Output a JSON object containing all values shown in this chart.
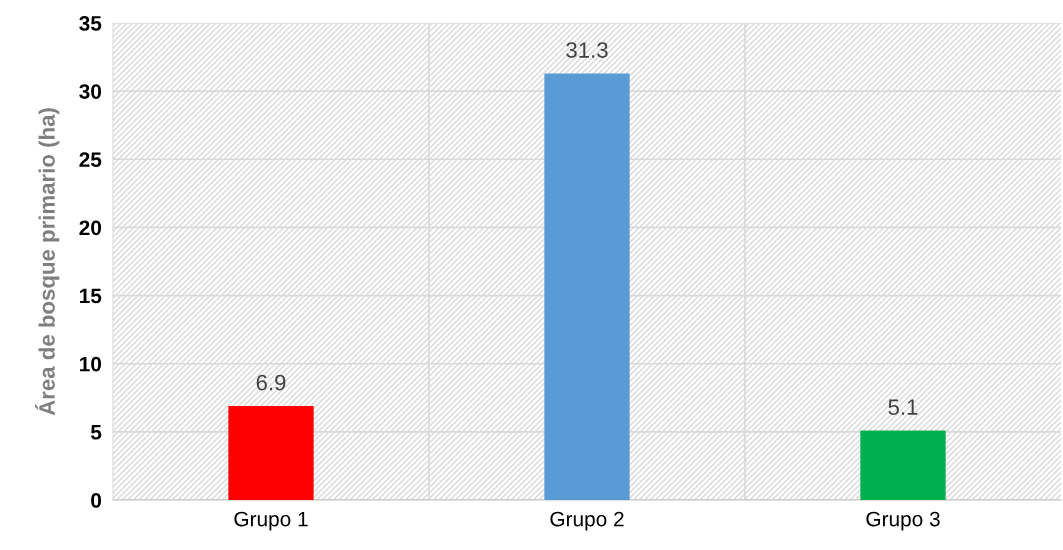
{
  "chart_data": {
    "type": "bar",
    "ylabel": "Área de bosque primario (ha)",
    "categories": [
      "Grupo 1",
      "Grupo 2",
      "Grupo 3"
    ],
    "values": [
      6.9,
      31.3,
      5.1
    ],
    "colors": [
      "#ff0000",
      "#5b9bd5",
      "#00b050"
    ],
    "ylim": [
      0,
      35
    ],
    "yticks": [
      0,
      5,
      10,
      15,
      20,
      25,
      30,
      35
    ],
    "grid": true,
    "data_labels": true
  }
}
